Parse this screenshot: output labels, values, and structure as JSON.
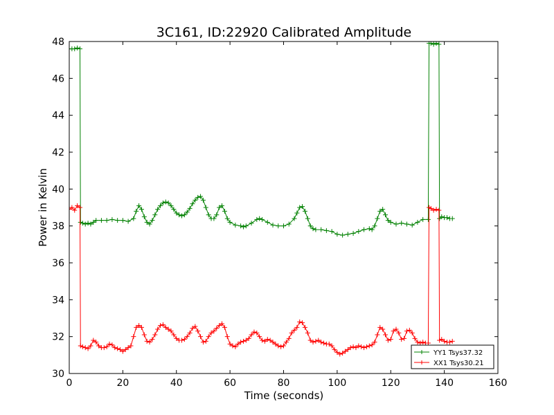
{
  "chart_data": {
    "type": "line",
    "title": "3C161, ID:22920 Calibrated Amplitude",
    "xlabel": "Time (seconds)",
    "ylabel": "Power in Kelvin",
    "xlim": [
      0,
      160
    ],
    "ylim": [
      30,
      48
    ],
    "xticks": [
      0,
      20,
      40,
      60,
      80,
      100,
      120,
      140,
      160
    ],
    "yticks": [
      30,
      32,
      34,
      36,
      38,
      40,
      42,
      44,
      46,
      48
    ],
    "grid": false,
    "legend_position": "bottom-right",
    "series": [
      {
        "name": "YY1 Tsys37.32",
        "color": "#008000",
        "marker": "plus",
        "points": [
          [
            0,
            47.6
          ],
          [
            1,
            47.6
          ],
          [
            2,
            47.6
          ],
          [
            3,
            47.65
          ],
          [
            4,
            47.6
          ],
          [
            4.2,
            38.2
          ],
          [
            5,
            38.15
          ],
          [
            6,
            38.1
          ],
          [
            7,
            38.15
          ],
          [
            8,
            38.1
          ],
          [
            9,
            38.2
          ],
          [
            10,
            38.3
          ],
          [
            12,
            38.3
          ],
          [
            14,
            38.3
          ],
          [
            16,
            38.35
          ],
          [
            18,
            38.3
          ],
          [
            20,
            38.3
          ],
          [
            22,
            38.25
          ],
          [
            24,
            38.4
          ],
          [
            25,
            38.8
          ],
          [
            26,
            39.1
          ],
          [
            27,
            38.9
          ],
          [
            28,
            38.5
          ],
          [
            29,
            38.2
          ],
          [
            30,
            38.1
          ],
          [
            31,
            38.3
          ],
          [
            32,
            38.6
          ],
          [
            33,
            38.9
          ],
          [
            34,
            39.1
          ],
          [
            35,
            39.25
          ],
          [
            36,
            39.3
          ],
          [
            37,
            39.25
          ],
          [
            38,
            39.1
          ],
          [
            39,
            38.9
          ],
          [
            40,
            38.7
          ],
          [
            41,
            38.6
          ],
          [
            42,
            38.55
          ],
          [
            43,
            38.6
          ],
          [
            44,
            38.75
          ],
          [
            45,
            38.95
          ],
          [
            46,
            39.2
          ],
          [
            47,
            39.4
          ],
          [
            48,
            39.55
          ],
          [
            49,
            39.6
          ],
          [
            50,
            39.4
          ],
          [
            51,
            39.0
          ],
          [
            52,
            38.6
          ],
          [
            53,
            38.4
          ],
          [
            54,
            38.4
          ],
          [
            55,
            38.6
          ],
          [
            56,
            39.0
          ],
          [
            57,
            39.1
          ],
          [
            58,
            38.8
          ],
          [
            59,
            38.4
          ],
          [
            60,
            38.2
          ],
          [
            62,
            38.05
          ],
          [
            64,
            38.0
          ],
          [
            65,
            37.95
          ],
          [
            66,
            38.0
          ],
          [
            68,
            38.15
          ],
          [
            70,
            38.35
          ],
          [
            71,
            38.4
          ],
          [
            72,
            38.35
          ],
          [
            74,
            38.2
          ],
          [
            76,
            38.05
          ],
          [
            78,
            38.0
          ],
          [
            80,
            38.0
          ],
          [
            82,
            38.1
          ],
          [
            84,
            38.4
          ],
          [
            85,
            38.7
          ],
          [
            86,
            39.0
          ],
          [
            87,
            39.05
          ],
          [
            88,
            38.8
          ],
          [
            89,
            38.4
          ],
          [
            90,
            38.0
          ],
          [
            91,
            37.85
          ],
          [
            92,
            37.8
          ],
          [
            94,
            37.8
          ],
          [
            96,
            37.75
          ],
          [
            98,
            37.7
          ],
          [
            100,
            37.55
          ],
          [
            102,
            37.5
          ],
          [
            104,
            37.55
          ],
          [
            106,
            37.6
          ],
          [
            108,
            37.7
          ],
          [
            110,
            37.8
          ],
          [
            112,
            37.85
          ],
          [
            113,
            37.8
          ],
          [
            114,
            38.0
          ],
          [
            115,
            38.4
          ],
          [
            116,
            38.8
          ],
          [
            117,
            38.9
          ],
          [
            118,
            38.6
          ],
          [
            119,
            38.3
          ],
          [
            120,
            38.2
          ],
          [
            122,
            38.1
          ],
          [
            124,
            38.15
          ],
          [
            126,
            38.1
          ],
          [
            128,
            38.05
          ],
          [
            130,
            38.2
          ],
          [
            132,
            38.35
          ],
          [
            134,
            38.35
          ],
          [
            134.3,
            47.9
          ],
          [
            135,
            47.9
          ],
          [
            136,
            47.85
          ],
          [
            137,
            47.9
          ],
          [
            138,
            47.85
          ],
          [
            138.2,
            38.4
          ],
          [
            139,
            38.5
          ],
          [
            140,
            38.45
          ],
          [
            141,
            38.45
          ],
          [
            142,
            38.4
          ],
          [
            143,
            38.4
          ]
        ]
      },
      {
        "name": "XX1 Tsys30.21",
        "color": "#ff0000",
        "marker": "plus",
        "points": [
          [
            0,
            38.9
          ],
          [
            1,
            39.0
          ],
          [
            2,
            38.85
          ],
          [
            3,
            39.1
          ],
          [
            4,
            39.0
          ],
          [
            4.2,
            31.5
          ],
          [
            5,
            31.45
          ],
          [
            6,
            31.4
          ],
          [
            7,
            31.35
          ],
          [
            8,
            31.5
          ],
          [
            9,
            31.8
          ],
          [
            10,
            31.7
          ],
          [
            11,
            31.5
          ],
          [
            12,
            31.4
          ],
          [
            13,
            31.4
          ],
          [
            14,
            31.45
          ],
          [
            15,
            31.6
          ],
          [
            16,
            31.55
          ],
          [
            17,
            31.4
          ],
          [
            18,
            31.35
          ],
          [
            19,
            31.3
          ],
          [
            20,
            31.2
          ],
          [
            21,
            31.3
          ],
          [
            22,
            31.4
          ],
          [
            23,
            31.5
          ],
          [
            24,
            32.0
          ],
          [
            25,
            32.5
          ],
          [
            26,
            32.6
          ],
          [
            27,
            32.5
          ],
          [
            28,
            32.1
          ],
          [
            29,
            31.75
          ],
          [
            30,
            31.7
          ],
          [
            31,
            31.85
          ],
          [
            32,
            32.1
          ],
          [
            33,
            32.4
          ],
          [
            34,
            32.6
          ],
          [
            35,
            32.65
          ],
          [
            36,
            32.5
          ],
          [
            37,
            32.4
          ],
          [
            38,
            32.3
          ],
          [
            39,
            32.1
          ],
          [
            40,
            31.9
          ],
          [
            41,
            31.8
          ],
          [
            42,
            31.8
          ],
          [
            43,
            31.85
          ],
          [
            44,
            32.0
          ],
          [
            45,
            32.2
          ],
          [
            46,
            32.45
          ],
          [
            47,
            32.55
          ],
          [
            48,
            32.3
          ],
          [
            49,
            32.0
          ],
          [
            50,
            31.7
          ],
          [
            51,
            31.75
          ],
          [
            52,
            32.0
          ],
          [
            53,
            32.2
          ],
          [
            54,
            32.3
          ],
          [
            55,
            32.45
          ],
          [
            56,
            32.6
          ],
          [
            57,
            32.7
          ],
          [
            58,
            32.5
          ],
          [
            59,
            32.0
          ],
          [
            60,
            31.6
          ],
          [
            61,
            31.5
          ],
          [
            62,
            31.45
          ],
          [
            63,
            31.6
          ],
          [
            64,
            31.7
          ],
          [
            65,
            31.75
          ],
          [
            66,
            31.8
          ],
          [
            67,
            31.9
          ],
          [
            68,
            32.1
          ],
          [
            69,
            32.25
          ],
          [
            70,
            32.2
          ],
          [
            71,
            32.0
          ],
          [
            72,
            31.8
          ],
          [
            73,
            31.75
          ],
          [
            74,
            31.85
          ],
          [
            75,
            31.8
          ],
          [
            76,
            31.7
          ],
          [
            77,
            31.6
          ],
          [
            78,
            31.5
          ],
          [
            79,
            31.45
          ],
          [
            80,
            31.5
          ],
          [
            81,
            31.7
          ],
          [
            82,
            31.9
          ],
          [
            83,
            32.2
          ],
          [
            84,
            32.35
          ],
          [
            85,
            32.5
          ],
          [
            86,
            32.8
          ],
          [
            87,
            32.75
          ],
          [
            88,
            32.5
          ],
          [
            89,
            32.2
          ],
          [
            90,
            31.8
          ],
          [
            91,
            31.7
          ],
          [
            92,
            31.75
          ],
          [
            93,
            31.8
          ],
          [
            94,
            31.7
          ],
          [
            95,
            31.65
          ],
          [
            96,
            31.6
          ],
          [
            97,
            31.6
          ],
          [
            98,
            31.5
          ],
          [
            99,
            31.3
          ],
          [
            100,
            31.15
          ],
          [
            101,
            31.05
          ],
          [
            102,
            31.1
          ],
          [
            103,
            31.2
          ],
          [
            104,
            31.3
          ],
          [
            105,
            31.4
          ],
          [
            106,
            31.45
          ],
          [
            107,
            31.4
          ],
          [
            108,
            31.5
          ],
          [
            109,
            31.45
          ],
          [
            110,
            31.4
          ],
          [
            111,
            31.45
          ],
          [
            112,
            31.5
          ],
          [
            113,
            31.55
          ],
          [
            114,
            31.7
          ],
          [
            115,
            32.1
          ],
          [
            116,
            32.5
          ],
          [
            117,
            32.4
          ],
          [
            118,
            32.1
          ],
          [
            119,
            31.8
          ],
          [
            120,
            31.85
          ],
          [
            121,
            32.3
          ],
          [
            122,
            32.4
          ],
          [
            123,
            32.2
          ],
          [
            124,
            31.85
          ],
          [
            125,
            31.9
          ],
          [
            126,
            32.3
          ],
          [
            127,
            32.35
          ],
          [
            128,
            32.2
          ],
          [
            129,
            31.9
          ],
          [
            130,
            31.7
          ],
          [
            131,
            31.65
          ],
          [
            132,
            31.7
          ],
          [
            133,
            31.65
          ],
          [
            134,
            31.65
          ],
          [
            134.3,
            39.0
          ],
          [
            135,
            38.95
          ],
          [
            136,
            38.85
          ],
          [
            137,
            38.9
          ],
          [
            138,
            38.85
          ],
          [
            138.2,
            31.8
          ],
          [
            139,
            31.85
          ],
          [
            140,
            31.75
          ],
          [
            141,
            31.7
          ],
          [
            142,
            31.7
          ],
          [
            143,
            31.75
          ]
        ]
      }
    ]
  }
}
